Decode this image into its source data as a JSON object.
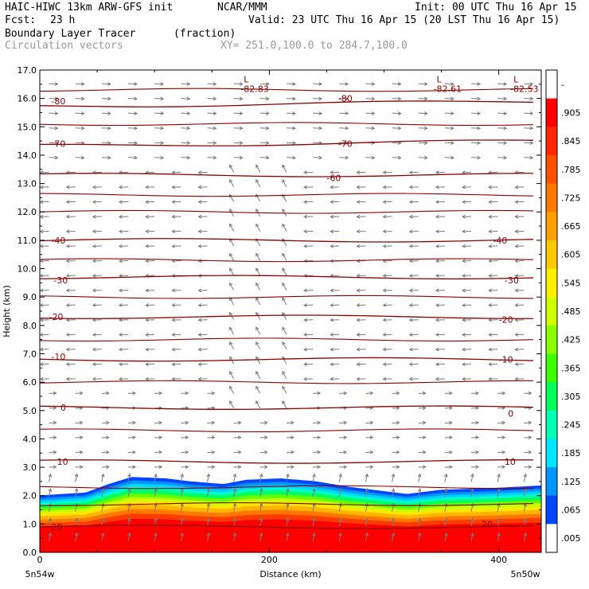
{
  "header": {
    "model_title": "HAIC-HIWC 13km ARW-GFS init",
    "org": "NCAR/MMM",
    "init": "Init: 00 UTC Thu 16 Apr 15",
    "fcst_label": "Fcst:",
    "fcst_value": "23 h",
    "valid": "Valid: 23 UTC Thu 16 Apr 15 (20 LST Thu 16 Apr 15)",
    "field_name": "Boundary Layer Tracer",
    "field_unit": "(fraction)",
    "overlay_name": "Circulation vectors",
    "xy_range": "XY= 251.0,100.0 to 284.7,100.0"
  },
  "chart_data": {
    "type": "heatmap",
    "xlabel": "Distance (km)",
    "ylabel": "Height (km)",
    "xlim": [
      0,
      437
    ],
    "ylim": [
      0.0,
      17.0
    ],
    "x_ticks": [
      0,
      200,
      400
    ],
    "y_ticks": [
      "0.0",
      "1.0",
      "2.0",
      "3.0",
      "4.0",
      "5.0",
      "6.0",
      "7.0",
      "8.0",
      "9.0",
      "10.0",
      "11.0",
      "12.0",
      "13.0",
      "14.0",
      "15.0",
      "16.0",
      "17.0"
    ],
    "x_endpoint_labels": [
      "5n54w",
      "5n50w"
    ],
    "colorbar": {
      "labels": [
        "-",
        ".905",
        ".845",
        ".785",
        ".725",
        ".665",
        ".605",
        ".545",
        ".485",
        ".425",
        ".365",
        ".305",
        ".245",
        ".185",
        ".125",
        ".065",
        ".005"
      ],
      "colors": [
        "#ffffff",
        "#ff0000",
        "#ff2800",
        "#ff5000",
        "#ff7800",
        "#ffa000",
        "#ffc800",
        "#fff000",
        "#d2ff00",
        "#8cff00",
        "#3cff00",
        "#00ff5a",
        "#00ffb4",
        "#00e6ff",
        "#0096ff",
        "#0046ff",
        "#ffffff"
      ]
    },
    "tracer_top_km": [
      {
        "x": 0,
        "z": 2.0
      },
      {
        "x": 40,
        "z": 2.1
      },
      {
        "x": 60,
        "z": 2.4
      },
      {
        "x": 80,
        "z": 2.65
      },
      {
        "x": 110,
        "z": 2.6
      },
      {
        "x": 130,
        "z": 2.5
      },
      {
        "x": 160,
        "z": 2.4
      },
      {
        "x": 180,
        "z": 2.55
      },
      {
        "x": 210,
        "z": 2.6
      },
      {
        "x": 240,
        "z": 2.5
      },
      {
        "x": 270,
        "z": 2.3
      },
      {
        "x": 300,
        "z": 2.15
      },
      {
        "x": 320,
        "z": 2.05
      },
      {
        "x": 350,
        "z": 2.2
      },
      {
        "x": 390,
        "z": 2.25
      },
      {
        "x": 437,
        "z": 2.35
      }
    ],
    "temperature_contours": [
      {
        "label": "20",
        "z": 0.9
      },
      {
        "label": "10",
        "z": 3.2
      },
      {
        "label": "0",
        "z": 5.1
      },
      {
        "label": "-10",
        "z": 6.8
      },
      {
        "label": "-20",
        "z": 8.3
      },
      {
        "label": "-30",
        "z": 9.7
      },
      {
        "label": "-40",
        "z": 11.0
      },
      {
        "label": "-60",
        "z": 13.3
      },
      {
        "label": "-70",
        "z": 14.4
      },
      {
        "label": "-80",
        "z": 15.8
      }
    ],
    "contour_labels": [
      {
        "text": "-80",
        "x": 10,
        "z": 15.9
      },
      {
        "text": "-80",
        "x": 260,
        "z": 16.0
      },
      {
        "text": "-70",
        "x": 10,
        "z": 14.4
      },
      {
        "text": "-70",
        "x": 260,
        "z": 14.4
      },
      {
        "text": "-60",
        "x": 250,
        "z": 13.2
      },
      {
        "text": "-40",
        "x": 10,
        "z": 11.0
      },
      {
        "text": "-40",
        "x": 395,
        "z": 11.0
      },
      {
        "text": "-30",
        "x": 12,
        "z": 9.6
      },
      {
        "text": "-30",
        "x": 405,
        "z": 9.6
      },
      {
        "text": "-20",
        "x": 8,
        "z": 8.3
      },
      {
        "text": "-20",
        "x": 400,
        "z": 8.2
      },
      {
        "text": "-10",
        "x": 10,
        "z": 6.9
      },
      {
        "text": "-10",
        "x": 400,
        "z": 6.8
      },
      {
        "text": "0",
        "x": 18,
        "z": 5.1
      },
      {
        "text": "0",
        "x": 408,
        "z": 4.9
      },
      {
        "text": "10",
        "x": 15,
        "z": 3.2
      },
      {
        "text": "10",
        "x": 405,
        "z": 3.2
      },
      {
        "text": "20",
        "x": 10,
        "z": 0.9
      },
      {
        "text": "20",
        "x": 385,
        "z": 1.0
      }
    ],
    "lows": [
      {
        "letter": "L",
        "value": "-82.83",
        "x": 175,
        "z": 16.4
      },
      {
        "letter": "L",
        "value": "-82.61",
        "x": 343,
        "z": 16.4
      },
      {
        "letter": "L",
        "value": "-82.53",
        "x": 410,
        "z": 16.4
      }
    ],
    "wind_vectors": "Circulation vectors"
  }
}
